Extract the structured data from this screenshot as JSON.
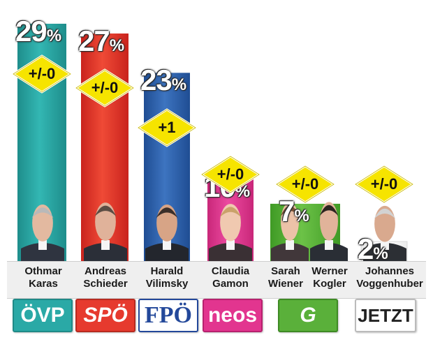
{
  "chart_data": {
    "type": "bar",
    "categories": [
      "ÖVP",
      "SPÖ",
      "FPÖ",
      "NEOS",
      "Grüne",
      "Jetzt"
    ],
    "values": [
      29,
      27,
      23,
      10,
      7,
      2
    ],
    "value_suffix": "%",
    "changes": [
      "+/-0",
      "+/-0",
      "+1",
      "+/-0",
      "+/-0",
      "+/-0"
    ],
    "candidates": [
      [
        "Othmar",
        "Karas"
      ],
      [
        "Andreas",
        "Schieder"
      ],
      [
        "Harald",
        "Vilimsky"
      ],
      [
        "Claudia",
        "Gamon"
      ],
      [
        "Sarah",
        "Wiener"
      ],
      [
        "Werner",
        "Kogler"
      ],
      [
        "Johannes",
        "Voggenhuber"
      ]
    ],
    "logos": [
      "ÖVP",
      "SPÖ",
      "FPÖ",
      "neos",
      "G",
      "JETZT"
    ],
    "colors": [
      "#2aa9a6",
      "#e63a2e",
      "#2e5fa8",
      "#e2358f",
      "#5ab03a",
      "#ffffff"
    ],
    "ylim": [
      0,
      30
    ],
    "grid": false
  }
}
